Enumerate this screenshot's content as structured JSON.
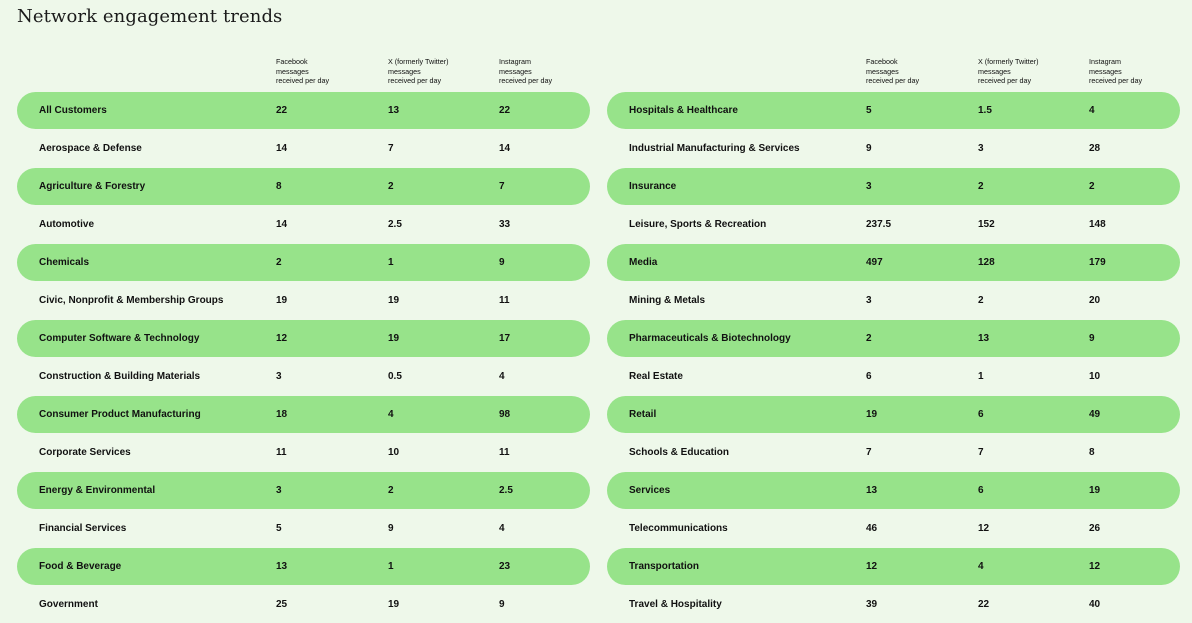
{
  "title": "Network engagement trends",
  "colors": {
    "background": "#eef8ea",
    "row_highlight": "#97e38a",
    "text": "#111111"
  },
  "chart_data": {
    "type": "table",
    "title": "Network engagement trends",
    "columns": [
      "Facebook\nmessages\nreceived per day",
      "X (formerly Twitter)\nmessages\nreceived per day",
      "Instagram\nmessages\nreceived per day"
    ],
    "left_table": [
      {
        "name": "All Customers",
        "values": [
          "22",
          "13",
          "22"
        ]
      },
      {
        "name": "Aerospace & Defense",
        "values": [
          "14",
          "7",
          "14"
        ]
      },
      {
        "name": "Agriculture & Forestry",
        "values": [
          "8",
          "2",
          "7"
        ]
      },
      {
        "name": "Automotive",
        "values": [
          "14",
          "2.5",
          "33"
        ]
      },
      {
        "name": "Chemicals",
        "values": [
          "2",
          "1",
          "9"
        ]
      },
      {
        "name": "Civic, Nonprofit & Membership Groups",
        "values": [
          "19",
          "19",
          "11"
        ]
      },
      {
        "name": "Computer Software & Technology",
        "values": [
          "12",
          "19",
          "17"
        ]
      },
      {
        "name": "Construction & Building Materials",
        "values": [
          "3",
          "0.5",
          "4"
        ]
      },
      {
        "name": "Consumer Product Manufacturing",
        "values": [
          "18",
          "4",
          "98"
        ]
      },
      {
        "name": "Corporate Services",
        "values": [
          "11",
          "10",
          "11"
        ]
      },
      {
        "name": "Energy & Environmental",
        "values": [
          "3",
          "2",
          "2.5"
        ]
      },
      {
        "name": "Financial Services",
        "values": [
          "5",
          "9",
          "4"
        ]
      },
      {
        "name": "Food & Beverage",
        "values": [
          "13",
          "1",
          "23"
        ]
      },
      {
        "name": "Government",
        "values": [
          "25",
          "19",
          "9"
        ]
      }
    ],
    "right_table": [
      {
        "name": "Hospitals & Healthcare",
        "values": [
          "5",
          "1.5",
          "4"
        ]
      },
      {
        "name": "Industrial Manufacturing & Services",
        "values": [
          "9",
          "3",
          "28"
        ]
      },
      {
        "name": "Insurance",
        "values": [
          "3",
          "2",
          "2"
        ]
      },
      {
        "name": "Leisure, Sports & Recreation",
        "values": [
          "237.5",
          "152",
          "148"
        ]
      },
      {
        "name": "Media",
        "values": [
          "497",
          "128",
          "179"
        ]
      },
      {
        "name": "Mining & Metals",
        "values": [
          "3",
          "2",
          "20"
        ]
      },
      {
        "name": "Pharmaceuticals & Biotechnology",
        "values": [
          "2",
          "13",
          "9"
        ]
      },
      {
        "name": "Real Estate",
        "values": [
          "6",
          "1",
          "10"
        ]
      },
      {
        "name": "Retail",
        "values": [
          "19",
          "6",
          "49"
        ]
      },
      {
        "name": "Schools & Education",
        "values": [
          "7",
          "7",
          "8"
        ]
      },
      {
        "name": "Services",
        "values": [
          "13",
          "6",
          "19"
        ]
      },
      {
        "name": "Telecommunications",
        "values": [
          "46",
          "12",
          "26"
        ]
      },
      {
        "name": "Transportation",
        "values": [
          "12",
          "4",
          "12"
        ]
      },
      {
        "name": "Travel & Hospitality",
        "values": [
          "39",
          "22",
          "40"
        ]
      }
    ]
  }
}
